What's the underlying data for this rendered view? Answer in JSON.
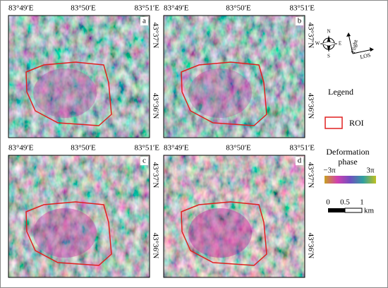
{
  "figure": {
    "panels": [
      {
        "label": "a"
      },
      {
        "label": "b"
      },
      {
        "label": "c"
      },
      {
        "label": "d"
      }
    ],
    "lon_labels": [
      "83°49′E",
      "83°50′E",
      "83°51′E"
    ],
    "lat_labels": [
      "43°37′N",
      "43°36′N"
    ],
    "compass": {
      "north": "N",
      "south": "S",
      "west": "W",
      "east": "E"
    },
    "flight": "Flight",
    "los": "LOS",
    "legend": {
      "title": "Legend",
      "roi": "ROI",
      "colorbar": {
        "title_lines": [
          "Deformation",
          "phase"
        ],
        "min": "−3π",
        "max": "3π"
      },
      "scale": {
        "ticks": [
          "0",
          "0.5",
          "1"
        ],
        "unit": "km"
      }
    }
  }
}
